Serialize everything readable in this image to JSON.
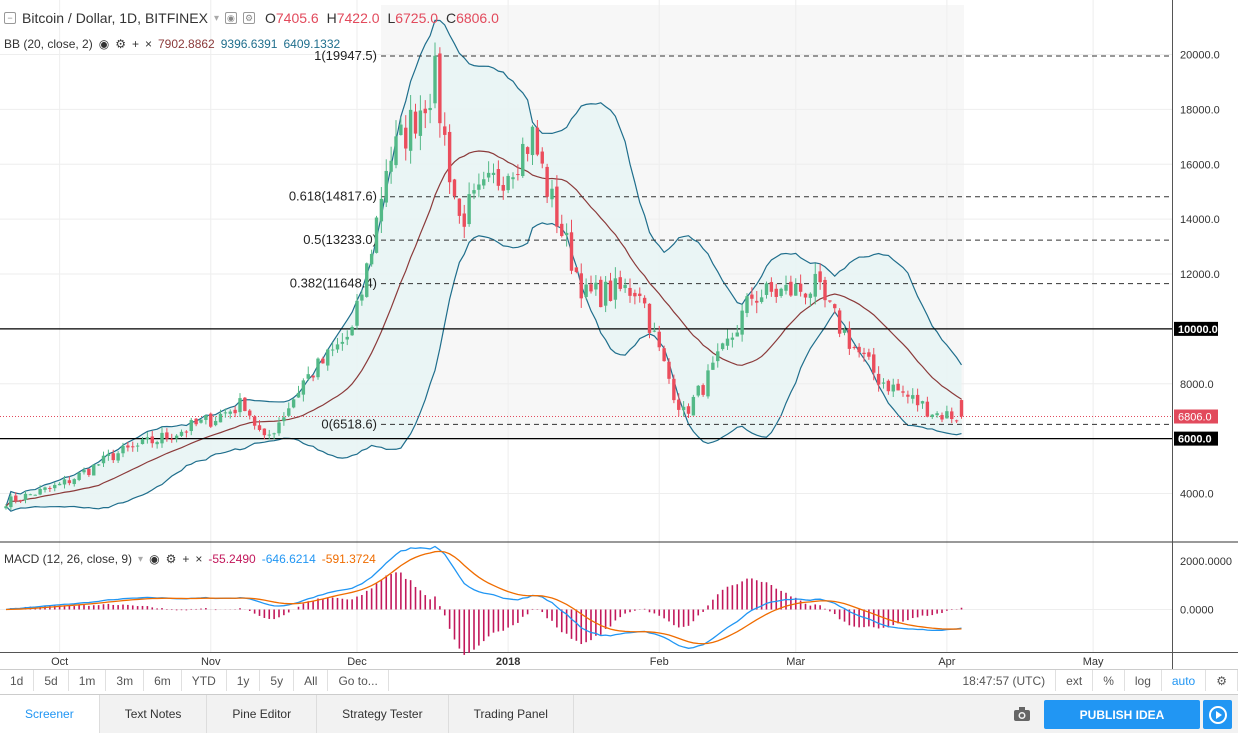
{
  "header": {
    "title": "Bitcoin / Dollar, 1D, BITFINEX",
    "ohlc": {
      "o_label": "O",
      "o": "7405.6",
      "h_label": "H",
      "h": "7422.0",
      "l_label": "L",
      "l": "6725.0",
      "c_label": "C",
      "c": "6806.0"
    }
  },
  "bb": {
    "label": "BB (20, close, 2)",
    "v1": "7902.8862",
    "v2": "9396.6391",
    "v3": "6409.1332",
    "c1": "#8b3a3a",
    "c2": "#1f6e8c",
    "c3": "#1f6e8c"
  },
  "macd": {
    "label": "MACD (12, 26, close, 9)",
    "v1": "-55.2490",
    "v2": "-646.6214",
    "v3": "-591.3724",
    "c1": "#c2185b",
    "c2": "#2196f3",
    "c3": "#ef6c00"
  },
  "fib": [
    {
      "label": "1(19947.5)",
      "price": 19947.5
    },
    {
      "label": "0.618(14817.6)",
      "price": 14817.6
    },
    {
      "label": "0.5(13233.0)",
      "price": 13233.0
    },
    {
      "label": "0.382(11648.4)",
      "price": 11648.4
    },
    {
      "label": "0(6518.6)",
      "price": 6518.6
    }
  ],
  "price_axis": [
    "20000.0",
    "18000.0",
    "16000.0",
    "14000.0",
    "12000.0",
    "8000.0",
    "4000.0"
  ],
  "price_axis_values": [
    20000,
    18000,
    16000,
    14000,
    12000,
    8000,
    4000
  ],
  "horizontal_lines": [
    {
      "label": "10000.0",
      "price": 10000
    },
    {
      "label": "6000.0",
      "price": 6000
    }
  ],
  "last_price": {
    "label": "6806.0",
    "price": 6806,
    "color": "#e24a5c"
  },
  "macd_axis": [
    "2000.0000",
    "0.0000"
  ],
  "time_axis": [
    "Oct",
    "Nov",
    "Dec",
    "2018",
    "Feb",
    "Mar",
    "Apr",
    "May"
  ],
  "range_buttons": [
    "1d",
    "5d",
    "1m",
    "3m",
    "6m",
    "YTD",
    "1y",
    "5y",
    "All",
    "Go to..."
  ],
  "time_display": "18:47:57 (UTC)",
  "right_buttons": [
    "ext",
    "%",
    "log",
    "auto"
  ],
  "tabs": [
    "Screener",
    "Text Notes",
    "Pine Editor",
    "Strategy Tester",
    "Trading Panel"
  ],
  "publish_label": "PUBLISH IDEA",
  "colors": {
    "up": "#53b987",
    "down": "#eb4d5c",
    "bb_fill": "#e8f4f4",
    "accent": "#2196f3"
  },
  "chart_data": {
    "type": "candlestick",
    "title": "Bitcoin / Dollar, 1D, BITFINEX",
    "ylim": [
      2500,
      21500
    ],
    "closes_anchor": [
      {
        "x": "2017-09-20",
        "y": 3700
      },
      {
        "x": "2017-10-01",
        "y": 4300
      },
      {
        "x": "2017-10-12",
        "y": 5400
      },
      {
        "x": "2017-10-20",
        "y": 5900
      },
      {
        "x": "2017-11-01",
        "y": 6700
      },
      {
        "x": "2017-11-08",
        "y": 7300
      },
      {
        "x": "2017-11-12",
        "y": 5900
      },
      {
        "x": "2017-11-20",
        "y": 8100
      },
      {
        "x": "2017-11-30",
        "y": 9900
      },
      {
        "x": "2017-12-07",
        "y": 16000
      },
      {
        "x": "2017-12-17",
        "y": 19100
      },
      {
        "x": "2017-12-22",
        "y": 14000
      },
      {
        "x": "2018-01-06",
        "y": 17000
      },
      {
        "x": "2018-01-17",
        "y": 11200
      },
      {
        "x": "2018-01-28",
        "y": 11500
      },
      {
        "x": "2018-02-06",
        "y": 6900
      },
      {
        "x": "2018-02-20",
        "y": 11200
      },
      {
        "x": "2018-03-05",
        "y": 11500
      },
      {
        "x": "2018-03-18",
        "y": 8200
      },
      {
        "x": "2018-03-30",
        "y": 6900
      },
      {
        "x": "2018-04-04",
        "y": 6806
      }
    ]
  }
}
